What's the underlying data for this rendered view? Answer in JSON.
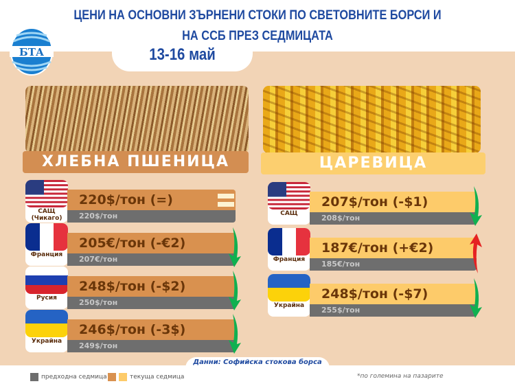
{
  "header": {
    "title_line1": "ЦЕНИ НА ОСНОВНИ ЗЪРНЕНИ СТОКИ ПО СВЕТОВНИТЕ БОРСИ И",
    "title_line2": "НА ССБ ПРЕЗ СЕДМИЦАТА",
    "date": "13-16 май",
    "logo_text": "БТА"
  },
  "colors": {
    "wheat_bar": "#d9914f",
    "corn_bar": "#fdcb6a",
    "previous_bar": "#6e6e6e",
    "down_arrow": "#10b050",
    "up_arrow": "#e52222",
    "title": "#1f4aa0"
  },
  "wheat": {
    "label": "ХЛЕБНА ПШЕНИЦА",
    "rows": [
      {
        "country": "САЩ (Чикаго)",
        "flag": "usa",
        "current": "220$/тон (=)",
        "previous": "220$/тон",
        "trend": "equal"
      },
      {
        "country": "Франция",
        "flag": "france",
        "current": "205€/тон (-€2)",
        "previous": "207€/тон",
        "trend": "down"
      },
      {
        "country": "Русия",
        "flag": "russia",
        "current": "248$/тон (-$2)",
        "previous": "250$/тон",
        "trend": "down"
      },
      {
        "country": "Украйна",
        "flag": "ukraine",
        "current": "246$/тон (-3$)",
        "previous": "249$/тон",
        "trend": "down"
      }
    ]
  },
  "corn": {
    "label": "ЦАРЕВИЦА",
    "rows": [
      {
        "country": "САЩ",
        "flag": "usa",
        "current": "207$/тон (-$1)",
        "previous": "208$/тон",
        "trend": "down"
      },
      {
        "country": "Франция",
        "flag": "france",
        "current": "187€/тон (+€2)",
        "previous": "185€/тон",
        "trend": "up"
      },
      {
        "country": "Украйна",
        "flag": "ukraine",
        "current": "248$/тон (-$7)",
        "previous": "255$/тон",
        "trend": "down"
      }
    ]
  },
  "footer": {
    "source": "Данни: Софийска стокова борса",
    "legend_previous": "предходна седмица",
    "legend_current": "текуща седмица",
    "note": "*по големина на пазарите"
  }
}
